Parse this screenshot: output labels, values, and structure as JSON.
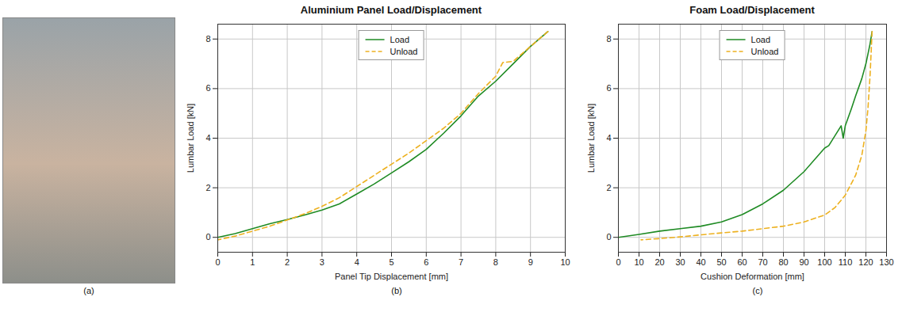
{
  "photo_panel": {
    "caption": "(a)"
  },
  "chart_data": [
    {
      "type": "line",
      "title": "Aluminium Panel Load/Displacement",
      "caption": "(b)",
      "x_label": "Panel Tip Displacement [mm]",
      "y_label": "Lumbar Load [kN]",
      "xlim": [
        0,
        10
      ],
      "xticks": [
        0,
        1,
        2,
        3,
        4,
        5,
        6,
        7,
        8,
        9,
        10
      ],
      "ylim": [
        -0.6,
        8.6
      ],
      "yticks": [
        0,
        2,
        4,
        6,
        8
      ],
      "grid": true,
      "legend": "top",
      "series": [
        {
          "name": "Load",
          "color": "#1f8b24",
          "line_style": "solid",
          "x": [
            0,
            0.5,
            1,
            1.5,
            2,
            2.5,
            3,
            3.5,
            4,
            4.5,
            5,
            5.5,
            6,
            6.5,
            7,
            7.5,
            8,
            8.5,
            9,
            9.5
          ],
          "values": [
            0,
            0.15,
            0.35,
            0.55,
            0.72,
            0.9,
            1.1,
            1.35,
            1.75,
            2.15,
            2.6,
            3.05,
            3.55,
            4.2,
            4.9,
            5.7,
            6.3,
            7.0,
            7.7,
            8.3
          ]
        },
        {
          "name": "Unload",
          "color": "#edb120",
          "line_style": "dashed",
          "x": [
            9.5,
            9,
            8.5,
            8.2,
            8,
            7.5,
            7,
            6.5,
            6,
            5.5,
            5,
            4.5,
            4,
            3.5,
            3,
            2.5,
            2,
            1.5,
            1,
            0.5,
            0
          ],
          "values": [
            8.3,
            7.7,
            7.1,
            7.05,
            6.5,
            5.8,
            5.0,
            4.4,
            3.9,
            3.4,
            2.95,
            2.5,
            2.05,
            1.6,
            1.25,
            0.95,
            0.7,
            0.45,
            0.25,
            0.05,
            -0.1
          ]
        }
      ]
    },
    {
      "type": "line",
      "title": "Foam Load/Displacement",
      "caption": "(c)",
      "x_label": "Cushion Deformation [mm]",
      "y_label": "Lumbar Load [kN]",
      "xlim": [
        0,
        130
      ],
      "xticks": [
        0,
        10,
        20,
        30,
        40,
        50,
        60,
        70,
        80,
        90,
        100,
        110,
        120,
        130
      ],
      "ylim": [
        -0.6,
        8.6
      ],
      "yticks": [
        0,
        2,
        4,
        6,
        8
      ],
      "grid": true,
      "legend": "top",
      "series": [
        {
          "name": "Load",
          "color": "#1f8b24",
          "line_style": "solid",
          "x": [
            0,
            10,
            20,
            30,
            40,
            50,
            60,
            70,
            80,
            90,
            100,
            102,
            105,
            108,
            109,
            110,
            113,
            115,
            118,
            120,
            122,
            123
          ],
          "values": [
            0,
            0.12,
            0.25,
            0.35,
            0.45,
            0.62,
            0.92,
            1.35,
            1.9,
            2.65,
            3.6,
            3.7,
            4.1,
            4.5,
            4.0,
            4.5,
            5.2,
            5.7,
            6.4,
            7.0,
            7.8,
            8.3
          ]
        },
        {
          "name": "Unload",
          "color": "#edb120",
          "line_style": "dashed",
          "x": [
            123,
            122,
            121,
            120,
            118,
            115,
            110,
            105,
            100,
            90,
            80,
            70,
            60,
            50,
            40,
            30,
            20,
            11
          ],
          "values": [
            8.3,
            6.5,
            5.2,
            4.3,
            3.3,
            2.5,
            1.7,
            1.2,
            0.9,
            0.62,
            0.45,
            0.35,
            0.25,
            0.18,
            0.1,
            0.02,
            -0.05,
            -0.1
          ]
        }
      ]
    }
  ]
}
